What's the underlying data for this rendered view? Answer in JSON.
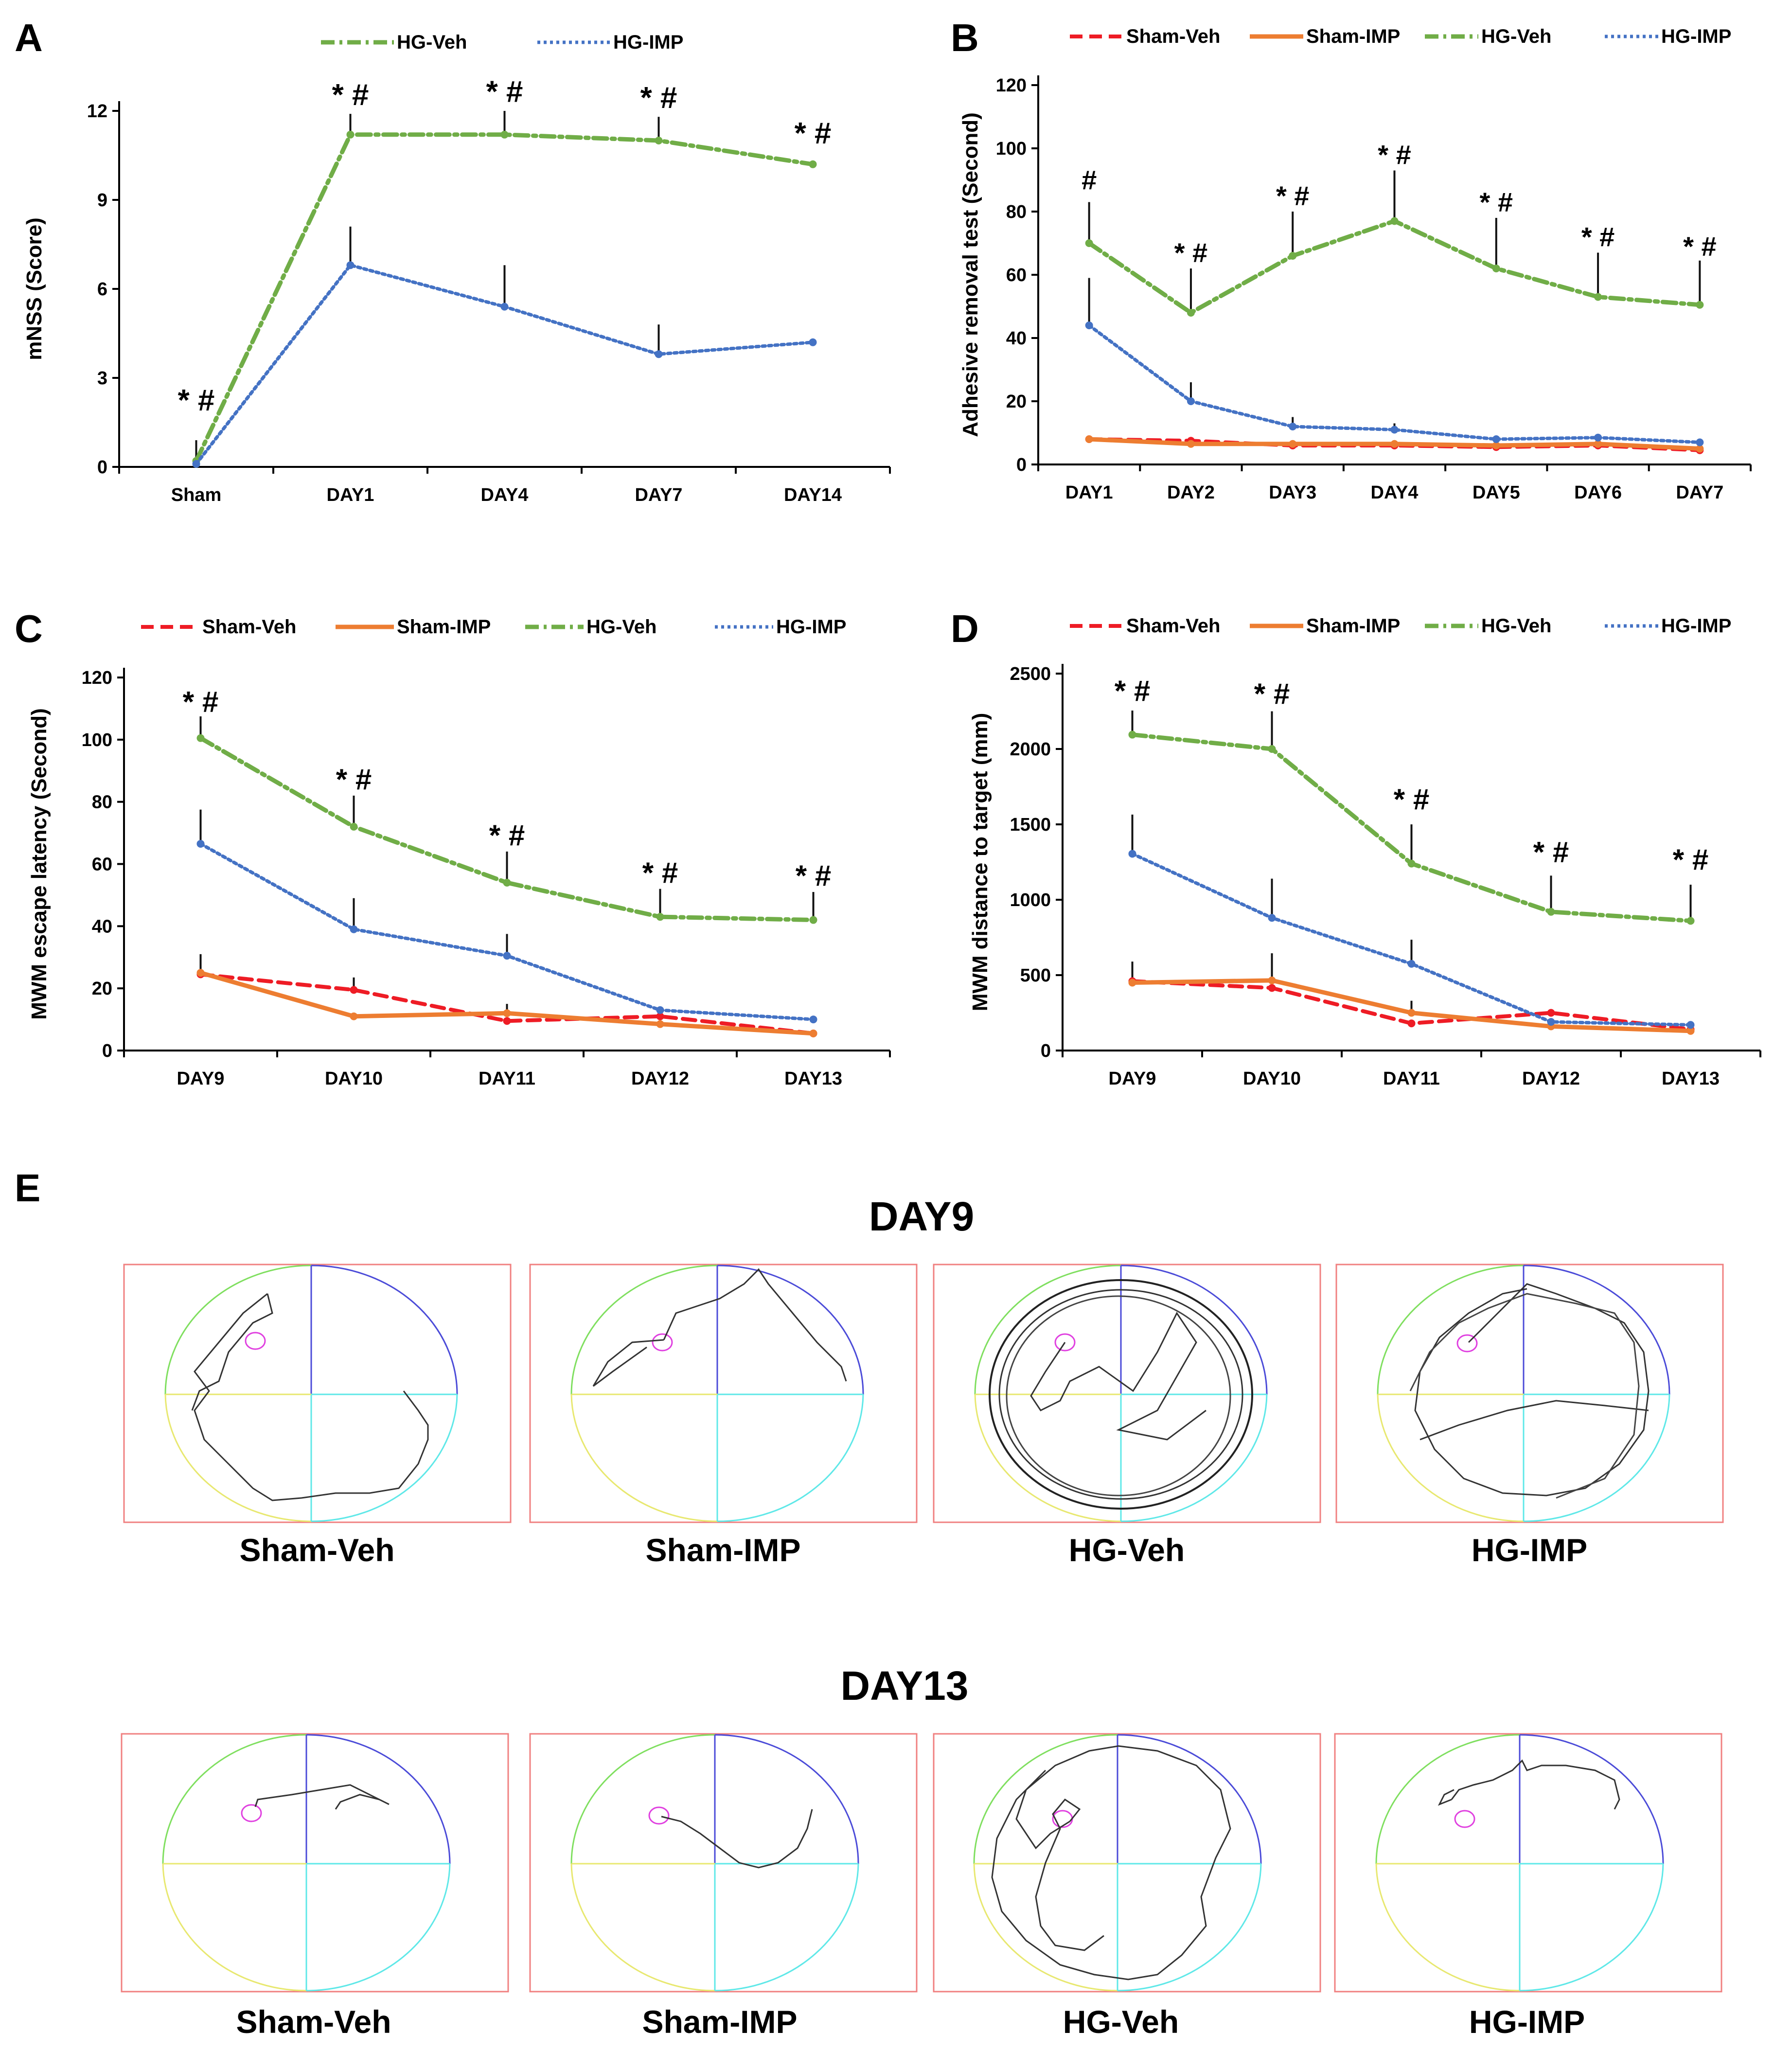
{
  "colors": {
    "Sham-Veh": "#ee1c25",
    "Sham-IMP": "#ed7d31",
    "HG-Veh": "#70ad47",
    "HG-IMP": "#4472c4"
  },
  "chart_data": [
    {
      "panel": "A",
      "type": "line",
      "ylabel": "mNSS (Score)",
      "xlabel": "",
      "ylim": [
        0,
        12
      ],
      "yticks": [
        "0",
        "3",
        "6",
        "9",
        "12"
      ],
      "categories": [
        "Sham",
        "DAY1",
        "DAY4",
        "DAY7",
        "DAY14"
      ],
      "legend": [
        "HG-Veh",
        "HG-IMP"
      ],
      "series": [
        {
          "name": "HG-Veh",
          "style": "dashdot",
          "values": [
            0.2,
            11.2,
            11.2,
            11.0,
            10.2
          ],
          "errors": [
            0,
            0.7,
            0.8,
            0.8,
            0
          ]
        },
        {
          "name": "HG-IMP",
          "style": "dotted",
          "values": [
            0.1,
            6.8,
            5.4,
            3.8,
            4.2
          ],
          "errors": [
            0.8,
            1.3,
            1.4,
            1.0,
            0
          ]
        }
      ],
      "annotations": [
        {
          "label": "* #",
          "x": "Sham",
          "y": 1.9
        },
        {
          "label": "* #",
          "x": "DAY1",
          "y": 12.2
        },
        {
          "label": "* #",
          "x": "DAY4",
          "y": 12.3
        },
        {
          "label": "* #",
          "x": "DAY7",
          "y": 12.1
        },
        {
          "label": "* #",
          "x": "DAY14",
          "y": 10.9
        }
      ]
    },
    {
      "panel": "B",
      "type": "line",
      "ylabel": "Adhesive removal test (Second)",
      "xlabel": "",
      "ylim": [
        0,
        120
      ],
      "yticks": [
        "0",
        "20",
        "40",
        "60",
        "80",
        "100",
        "120"
      ],
      "categories": [
        "DAY1",
        "DAY2",
        "DAY3",
        "DAY4",
        "DAY5",
        "DAY6",
        "DAY7"
      ],
      "legend": [
        "Sham-Veh",
        "Sham-IMP",
        "HG-Veh",
        "HG-IMP"
      ],
      "series": [
        {
          "name": "Sham-Veh",
          "style": "dashed",
          "values": [
            8,
            7.5,
            6,
            6,
            5.5,
            6,
            4.5
          ],
          "errors": [
            0,
            0,
            0,
            0,
            0,
            0,
            0
          ]
        },
        {
          "name": "Sham-IMP",
          "style": "solid",
          "values": [
            8,
            6.5,
            6.5,
            6.5,
            6,
            6.5,
            5
          ],
          "errors": [
            0,
            0,
            0,
            0,
            0,
            0,
            0
          ]
        },
        {
          "name": "HG-Veh",
          "style": "dashdot",
          "values": [
            70,
            48,
            66,
            77,
            62,
            53,
            50.5
          ],
          "errors": [
            13,
            14,
            14,
            16,
            16,
            14,
            14
          ]
        },
        {
          "name": "HG-IMP",
          "style": "dotted",
          "values": [
            44,
            20,
            12,
            11,
            8,
            8.5,
            7
          ],
          "errors": [
            15,
            6,
            3,
            2,
            0,
            0,
            0
          ]
        }
      ],
      "annotations": [
        {
          "label": "#",
          "x": "DAY1",
          "y": 87
        },
        {
          "label": "* #",
          "x": "DAY2",
          "y": 64
        },
        {
          "label": "* #",
          "x": "DAY3",
          "y": 82
        },
        {
          "label": "* #",
          "x": "DAY4",
          "y": 95
        },
        {
          "label": "* #",
          "x": "DAY5",
          "y": 80
        },
        {
          "label": "* #",
          "x": "DAY6",
          "y": 69
        },
        {
          "label": "* #",
          "x": "DAY7",
          "y": 66
        }
      ]
    },
    {
      "panel": "C",
      "type": "line",
      "ylabel": "MWM escape latency (Second)",
      "xlabel": "",
      "ylim": [
        0,
        120
      ],
      "yticks": [
        "0",
        "20",
        "40",
        "60",
        "80",
        "100",
        "120"
      ],
      "categories": [
        "DAY9",
        "DAY10",
        "DAY11",
        "DAY12",
        "DAY13"
      ],
      "legend": [
        "Sham-Veh",
        "Sham-IMP",
        "HG-Veh",
        "HG-IMP"
      ],
      "series": [
        {
          "name": "Sham-Veh",
          "style": "dashed",
          "values": [
            24.5,
            19.5,
            9.5,
            11,
            5.5
          ],
          "errors": [
            0,
            4,
            0,
            0,
            0
          ]
        },
        {
          "name": "Sham-IMP",
          "style": "solid",
          "values": [
            25,
            11,
            12,
            8.5,
            5.5
          ],
          "errors": [
            6,
            0,
            3,
            0,
            0
          ]
        },
        {
          "name": "HG-Veh",
          "style": "dashdot",
          "values": [
            100.5,
            72,
            54,
            43,
            42
          ],
          "errors": [
            7,
            10,
            10,
            9,
            9
          ]
        },
        {
          "name": "HG-IMP",
          "style": "dotted",
          "values": [
            66.5,
            39,
            30.5,
            13,
            10
          ],
          "errors": [
            11,
            10,
            7,
            0,
            0
          ]
        }
      ],
      "annotations": [
        {
          "label": "* #",
          "x": "DAY9",
          "y": 109
        },
        {
          "label": "* #",
          "x": "DAY10",
          "y": 84
        },
        {
          "label": "* #",
          "x": "DAY11",
          "y": 66
        },
        {
          "label": "* #",
          "x": "DAY12",
          "y": 54
        },
        {
          "label": "* #",
          "x": "DAY13",
          "y": 53
        }
      ]
    },
    {
      "panel": "D",
      "type": "line",
      "ylabel": "MWM distance to target (mm)",
      "xlabel": "",
      "ylim": [
        0,
        2500
      ],
      "yticks": [
        "0",
        "500",
        "1000",
        "1500",
        "2000",
        "2500"
      ],
      "categories": [
        "DAY9",
        "DAY10",
        "DAY11",
        "DAY12",
        "DAY13"
      ],
      "legend": [
        "Sham-Veh",
        "Sham-IMP",
        "HG-Veh",
        "HG-IMP"
      ],
      "series": [
        {
          "name": "Sham-Veh",
          "style": "dashed",
          "values": [
            460,
            415,
            180,
            250,
            140
          ],
          "errors": [
            130,
            0,
            0,
            0,
            0
          ]
        },
        {
          "name": "Sham-IMP",
          "style": "solid",
          "values": [
            450,
            465,
            250,
            160,
            130
          ],
          "errors": [
            0,
            180,
            80,
            0,
            0
          ]
        },
        {
          "name": "HG-Veh",
          "style": "dashdot",
          "values": [
            2095,
            2000,
            1240,
            920,
            860
          ],
          "errors": [
            160,
            250,
            260,
            240,
            240
          ]
        },
        {
          "name": "HG-IMP",
          "style": "dotted",
          "values": [
            1305,
            880,
            575,
            190,
            170
          ],
          "errors": [
            260,
            260,
            160,
            0,
            0
          ]
        }
      ],
      "annotations": [
        {
          "label": "* #",
          "x": "DAY9",
          "y": 2320
        },
        {
          "label": "* #",
          "x": "DAY10",
          "y": 2300
        },
        {
          "label": "* #",
          "x": "DAY11",
          "y": 1600
        },
        {
          "label": "* #",
          "x": "DAY12",
          "y": 1250
        },
        {
          "label": "* #",
          "x": "DAY13",
          "y": 1200
        }
      ]
    }
  ],
  "panel_e": {
    "label": "E",
    "rows": [
      {
        "title": "DAY9",
        "groups": [
          "Sham-Veh",
          "Sham-IMP",
          "HG-Veh",
          "HG-IMP"
        ]
      },
      {
        "title": "DAY13",
        "groups": [
          "Sham-Veh",
          "Sham-IMP",
          "HG-Veh",
          "HG-IMP"
        ]
      }
    ]
  }
}
